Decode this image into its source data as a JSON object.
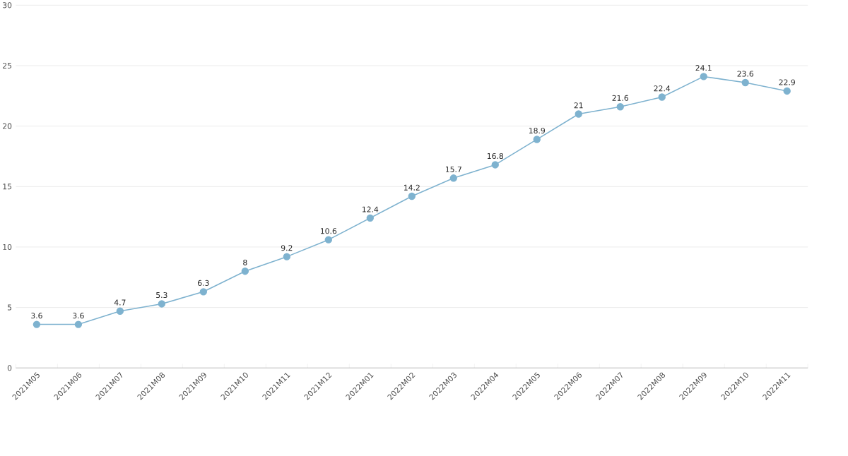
{
  "chart_data": {
    "type": "line",
    "categories": [
      "2021M05",
      "2021M06",
      "2021M07",
      "2021M08",
      "2021M09",
      "2021M10",
      "2021M11",
      "2021M12",
      "2022M01",
      "2022M02",
      "2022M03",
      "2022M04",
      "2022M05",
      "2022M06",
      "2022M07",
      "2022M08",
      "2022M09",
      "2022M10",
      "2022M11"
    ],
    "values": [
      3.6,
      3.6,
      4.7,
      5.3,
      6.3,
      8,
      9.2,
      10.6,
      12.4,
      14.2,
      15.7,
      16.8,
      18.9,
      21,
      21.6,
      22.4,
      24.1,
      23.6,
      22.9
    ],
    "color": "#7eb2cf",
    "ylim": [
      0,
      30
    ],
    "yticks": [
      0,
      5,
      10,
      15,
      20,
      25,
      30
    ],
    "grid": "y",
    "marker": "circle",
    "line_style": "solid",
    "data_labels": true
  }
}
